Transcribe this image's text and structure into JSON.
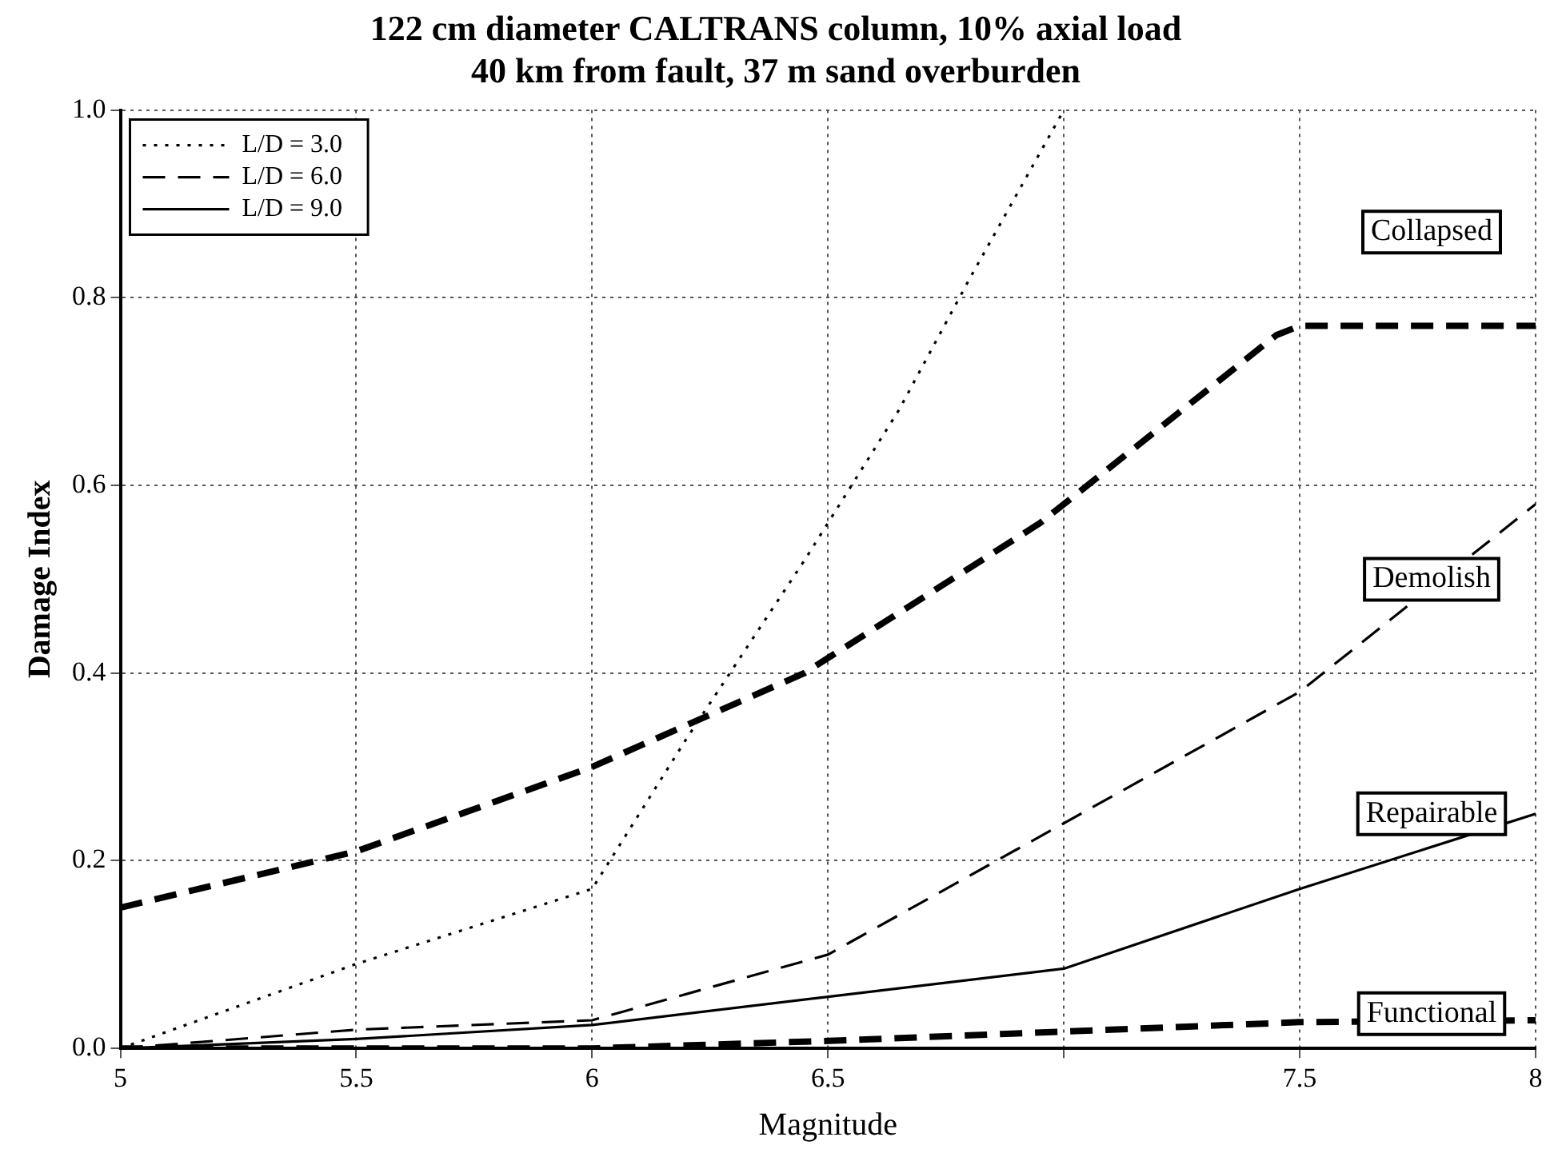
{
  "chart_data": {
    "type": "line",
    "title": "122 cm diameter CALTRANS column, 10% axial load\n40 km from fault, 37 m sand overburden",
    "xlabel": "Magnitude",
    "ylabel": "Damage Index",
    "xlim": [
      5,
      8
    ],
    "xticks": [
      5,
      5.5,
      6,
      6.5,
      {
        "value": 7,
        "label": null
      },
      7.5,
      8
    ],
    "ylim": [
      0,
      1
    ],
    "yticks": [
      {
        "value": 0,
        "label": "0.0"
      },
      {
        "value": 0.2,
        "label": "0.2"
      },
      {
        "value": 0.4,
        "label": "0.4"
      },
      {
        "value": 0.6,
        "label": "0.6"
      },
      {
        "value": 0.8,
        "label": "0.8"
      },
      {
        "value": 1,
        "label": "1.0"
      }
    ],
    "grid": true,
    "legend": "top left",
    "marker": "none",
    "series": [
      {
        "name": "L/D = 3.0",
        "color": "#000000",
        "line_style": "dotted",
        "x": [
          5,
          5.5,
          6,
          6.2,
          6.45,
          6.65,
          6.8,
          7
        ],
        "values": [
          0,
          0.09,
          0.17,
          0.33,
          0.52,
          0.68,
          0.82,
          1.0
        ]
      },
      {
        "name": "L/D = 6.0",
        "color": "#000000",
        "line_style": "dashed",
        "x": [
          5,
          5.5,
          6,
          6.5,
          7,
          7.5,
          8
        ],
        "values": [
          0,
          0.02,
          0.03,
          0.1,
          0.24,
          0.38,
          0.58
        ]
      },
      {
        "name": "L/D = 9.0",
        "color": "#000000",
        "line_style": "solid",
        "x": [
          5,
          5.5,
          6,
          6.5,
          7,
          7.5,
          8
        ],
        "values": [
          0,
          0.01,
          0.025,
          0.055,
          0.085,
          0.17,
          0.25
        ]
      },
      {
        "color": "#000000",
        "line_style": "dashed",
        "x": [
          5,
          5.5,
          6,
          6.45,
          6.95,
          7.45,
          7.5,
          8
        ],
        "values": [
          0.15,
          0.21,
          0.3,
          0.4,
          0.56,
          0.76,
          0.77,
          0.77
        ]
      },
      {
        "color": "#000000",
        "line_style": "dashed",
        "x": [
          5,
          5.5,
          6,
          6.5,
          7,
          7.5,
          8
        ],
        "values": [
          0,
          0,
          0,
          0.008,
          0.018,
          0.028,
          0.03
        ]
      }
    ],
    "annotations": [
      "Collapsed",
      "Demolish",
      "Repairable",
      "Functional"
    ]
  }
}
